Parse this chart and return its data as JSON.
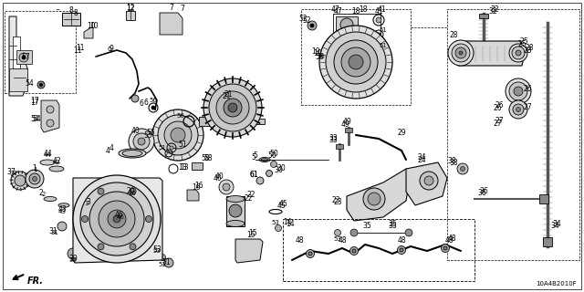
{
  "bg_color": "#ffffff",
  "diagram_code": "10A4B2010F",
  "fr_label": "FR.",
  "line_color": "#000000",
  "text_color": "#000000",
  "font_size": 6.0
}
